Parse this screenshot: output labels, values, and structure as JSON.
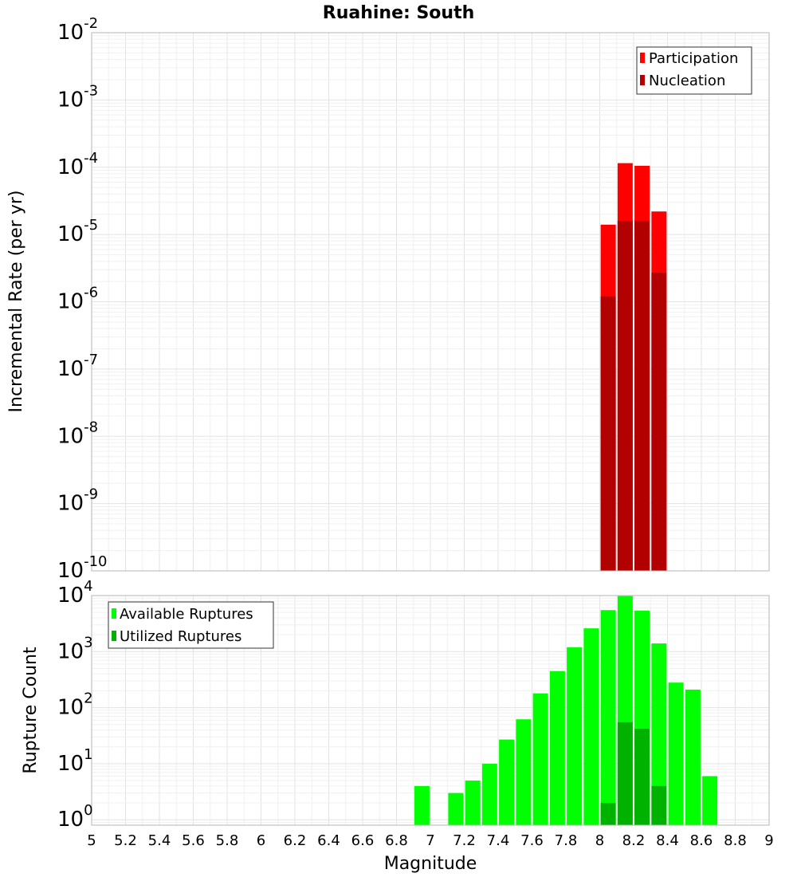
{
  "chart_data": [
    {
      "type": "bar",
      "title": "Ruahine: South",
      "ylabel": "Incremental Rate (per yr)",
      "yscale": "log",
      "ylim": [
        1e-10,
        0.01
      ],
      "xlim": [
        5,
        9
      ],
      "y_ticks": [
        {
          "base": "10",
          "exp": "-10",
          "value": 1e-10
        },
        {
          "base": "10",
          "exp": "-9",
          "value": 1e-09
        },
        {
          "base": "10",
          "exp": "-8",
          "value": 1e-08
        },
        {
          "base": "10",
          "exp": "-7",
          "value": 1e-07
        },
        {
          "base": "10",
          "exp": "-6",
          "value": 1e-06
        },
        {
          "base": "10",
          "exp": "-5",
          "value": 1e-05
        },
        {
          "base": "10",
          "exp": "-4",
          "value": 0.0001
        },
        {
          "base": "10",
          "exp": "-3",
          "value": 0.001
        },
        {
          "base": "10",
          "exp": "-2",
          "value": 0.01
        }
      ],
      "legend": {
        "position": "top-right",
        "entries": [
          {
            "label": "Participation",
            "color": "#ff0000"
          },
          {
            "label": "Nucleation",
            "color": "#b20000"
          }
        ]
      },
      "series": [
        {
          "name": "Participation",
          "color": "#ff0000",
          "x": [
            8.05,
            8.15,
            8.25,
            8.35
          ],
          "values": [
            1.4e-05,
            0.000115,
            0.000105,
            2.2e-05
          ]
        },
        {
          "name": "Nucleation",
          "color": "#b20000",
          "x": [
            8.05,
            8.15,
            8.25,
            8.35
          ],
          "values": [
            1.2e-06,
            1.6e-05,
            1.6e-05,
            2.7e-06
          ]
        }
      ]
    },
    {
      "type": "bar",
      "ylabel": "Rupture Count",
      "xlabel": "Magnitude",
      "yscale": "log",
      "ylim": [
        0.8,
        10000
      ],
      "xlim": [
        5,
        9
      ],
      "y_ticks": [
        {
          "base": "10",
          "exp": "0",
          "value": 1
        },
        {
          "base": "10",
          "exp": "1",
          "value": 10
        },
        {
          "base": "10",
          "exp": "2",
          "value": 100
        },
        {
          "base": "10",
          "exp": "3",
          "value": 1000
        },
        {
          "base": "10",
          "exp": "4",
          "value": 10000
        }
      ],
      "x_ticks": [
        "5",
        "5.2",
        "5.4",
        "5.6",
        "5.8",
        "6",
        "6.2",
        "6.4",
        "6.6",
        "6.8",
        "7",
        "7.2",
        "7.4",
        "7.6",
        "7.8",
        "8",
        "8.2",
        "8.4",
        "8.6",
        "8.8",
        "9"
      ],
      "legend": {
        "position": "top-left",
        "entries": [
          {
            "label": "Available Ruptures",
            "color": "#00ff00"
          },
          {
            "label": "Utilized Ruptures",
            "color": "#00b200"
          }
        ]
      },
      "series": [
        {
          "name": "Available Ruptures",
          "color": "#00ff00",
          "x": [
            6.95,
            7.15,
            7.25,
            7.35,
            7.45,
            7.55,
            7.65,
            7.75,
            7.85,
            7.95,
            8.05,
            8.15,
            8.25,
            8.35,
            8.45,
            8.55,
            8.65
          ],
          "values": [
            4,
            3,
            5,
            10,
            27,
            62,
            180,
            450,
            1200,
            2600,
            5500,
            9800,
            5400,
            1400,
            280,
            210,
            6
          ]
        },
        {
          "name": "Utilized Ruptures",
          "color": "#00b200",
          "x": [
            8.05,
            8.15,
            8.25,
            8.35
          ],
          "values": [
            2,
            55,
            42,
            4
          ]
        }
      ]
    }
  ]
}
